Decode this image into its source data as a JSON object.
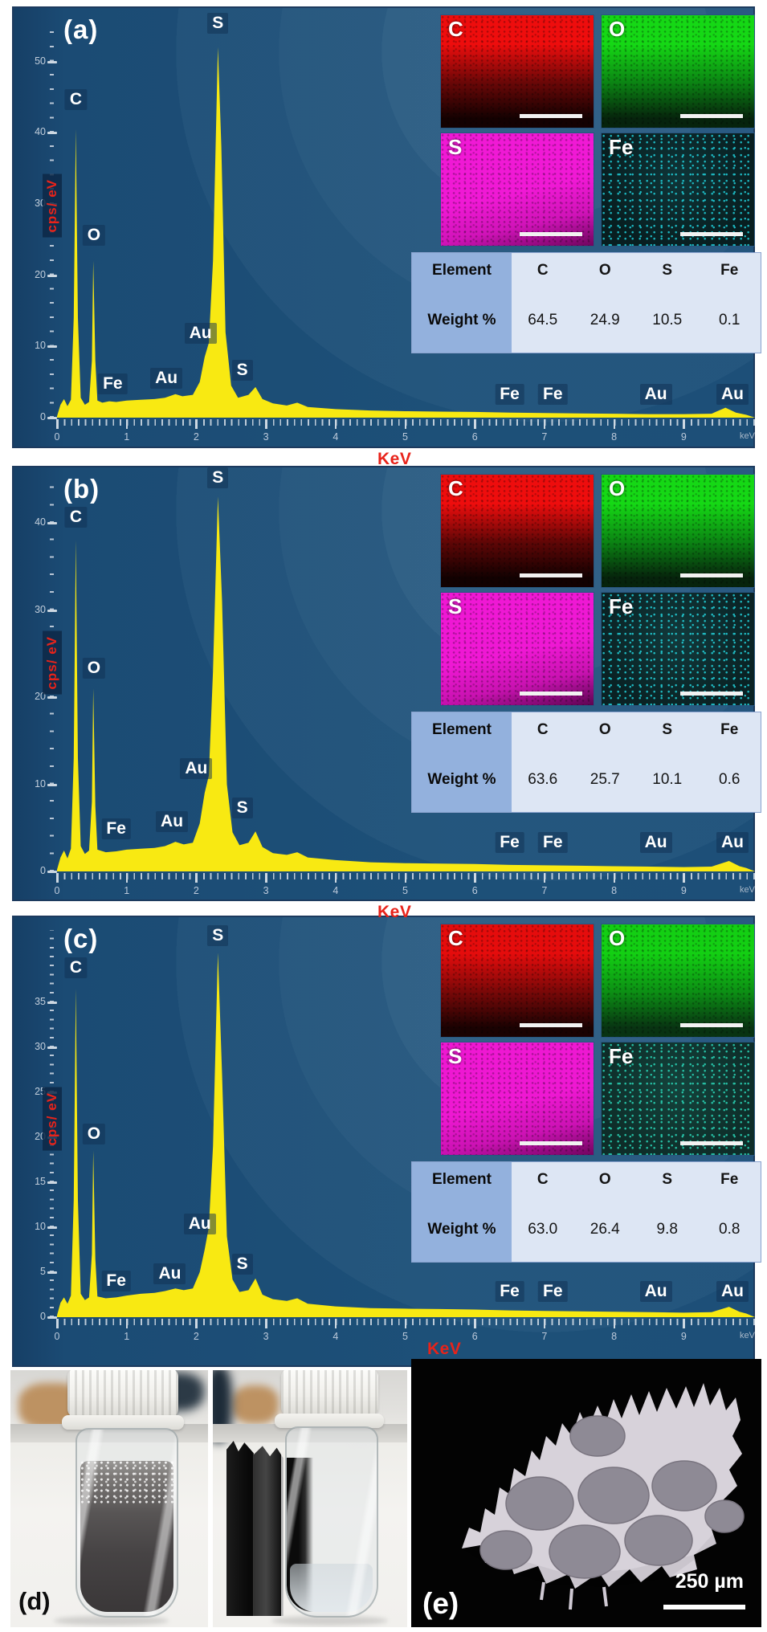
{
  "figure": {
    "panel_d_label": "(d)",
    "panel_e_label": "(e)",
    "sem_scale_bar_label": "250 µm"
  },
  "chart_data": [
    {
      "panel": "a",
      "type": "area",
      "title": "(a)",
      "xlabel": "KeV",
      "ylabel": "cps/ eV",
      "x_unit": "keV",
      "xlim": [
        0,
        10
      ],
      "ylim": [
        0,
        57.7
      ],
      "x_ticks": [
        0,
        1,
        2,
        3,
        4,
        5,
        6,
        7,
        8,
        9
      ],
      "y_ticks": [
        0,
        10,
        20,
        30,
        40,
        50
      ],
      "y_minor_interval": 2,
      "grid": false,
      "legend": "none",
      "series": [
        {
          "name": "EDS spectrum",
          "points": [
            [
              0,
              0.2
            ],
            [
              0.05,
              1.8
            ],
            [
              0.1,
              2.6
            ],
            [
              0.15,
              1.6
            ],
            [
              0.2,
              2.5
            ],
            [
              0.24,
              14
            ],
            [
              0.27,
              40.5
            ],
            [
              0.3,
              14
            ],
            [
              0.34,
              2.8
            ],
            [
              0.4,
              1.8
            ],
            [
              0.46,
              2.2
            ],
            [
              0.5,
              8
            ],
            [
              0.52,
              22
            ],
            [
              0.55,
              8
            ],
            [
              0.58,
              2.4
            ],
            [
              0.65,
              2.1
            ],
            [
              0.75,
              2.3
            ],
            [
              0.85,
              2.2
            ],
            [
              1,
              2.4
            ],
            [
              1.2,
              2.5
            ],
            [
              1.4,
              2.6
            ],
            [
              1.55,
              2.8
            ],
            [
              1.7,
              3.3
            ],
            [
              1.8,
              3
            ],
            [
              1.95,
              3.2
            ],
            [
              2.05,
              5
            ],
            [
              2.12,
              8.5
            ],
            [
              2.18,
              10.5
            ],
            [
              2.24,
              22
            ],
            [
              2.31,
              52
            ],
            [
              2.36,
              38
            ],
            [
              2.42,
              12
            ],
            [
              2.5,
              4.5
            ],
            [
              2.6,
              2.8
            ],
            [
              2.75,
              3.2
            ],
            [
              2.85,
              4.3
            ],
            [
              2.95,
              2.6
            ],
            [
              3.1,
              2
            ],
            [
              3.3,
              1.7
            ],
            [
              3.45,
              2.1
            ],
            [
              3.6,
              1.5
            ],
            [
              4,
              1.2
            ],
            [
              4.5,
              1
            ],
            [
              5,
              0.9
            ],
            [
              5.5,
              0.85
            ],
            [
              6,
              0.8
            ],
            [
              6.5,
              0.7
            ],
            [
              7,
              0.65
            ],
            [
              7.5,
              0.6
            ],
            [
              8,
              0.55
            ],
            [
              8.5,
              0.5
            ],
            [
              9,
              0.5
            ],
            [
              9.4,
              0.55
            ],
            [
              9.6,
              1.4
            ],
            [
              9.75,
              0.7
            ],
            [
              9.9,
              0.4
            ]
          ]
        }
      ],
      "peak_labels": [
        {
          "text": "C",
          "keV": 0.27,
          "value": 44.6
        },
        {
          "text": "O",
          "keV": 0.53,
          "value": 25.6
        },
        {
          "text": "S",
          "keV": 2.31,
          "value": 55.4
        },
        {
          "text": "Au",
          "keV": 2.06,
          "value": 11.8
        },
        {
          "text": "Fe",
          "keV": 0.8,
          "value": 4.7
        },
        {
          "text": "Au",
          "keV": 1.57,
          "value": 5.5
        },
        {
          "text": "S",
          "keV": 2.66,
          "value": 6.7
        },
        {
          "text": "Fe",
          "keV": 6.5,
          "value": 3.3
        },
        {
          "text": "Fe",
          "keV": 7.12,
          "value": 3.3
        },
        {
          "text": "Au",
          "keV": 8.6,
          "value": 3.3
        },
        {
          "text": "Au",
          "keV": 9.7,
          "value": 3.3
        }
      ],
      "element_maps": [
        {
          "element": "C",
          "style": "grad",
          "colors": [
            "#ee0d0d",
            "#6a0707",
            "#140101"
          ]
        },
        {
          "element": "O",
          "style": "grad",
          "colors": [
            "#15d815",
            "#0b8413",
            "#06230c"
          ]
        },
        {
          "element": "S",
          "style": "grad-s",
          "colors": [
            "#f019d5",
            "#d013b8",
            "#6e055d"
          ]
        },
        {
          "element": "Fe",
          "style": "speck",
          "colors": [
            "#081e20",
            "#0f3538",
            "#22dde8"
          ]
        }
      ],
      "weight_table": {
        "header_label": "Element",
        "columns": [
          "C",
          "O",
          "S",
          "Fe"
        ],
        "row_label": "Weight %",
        "values": [
          "64.5",
          "24.9",
          "10.5",
          "0.1"
        ]
      }
    },
    {
      "panel": "b",
      "type": "area",
      "title": "(b)",
      "xlabel": "KeV",
      "ylabel": "cps/ eV",
      "x_unit": "keV",
      "xlim": [
        0,
        10
      ],
      "ylim": [
        0,
        46.5
      ],
      "x_ticks": [
        0,
        1,
        2,
        3,
        4,
        5,
        6,
        7,
        8,
        9
      ],
      "y_ticks": [
        0,
        10,
        20,
        30,
        40
      ],
      "y_minor_interval": 2,
      "grid": false,
      "legend": "none",
      "series": [
        {
          "name": "EDS spectrum",
          "points": [
            [
              0,
              0.2
            ],
            [
              0.05,
              1.6
            ],
            [
              0.1,
              2.4
            ],
            [
              0.15,
              1.5
            ],
            [
              0.2,
              2.6
            ],
            [
              0.24,
              13
            ],
            [
              0.27,
              38
            ],
            [
              0.3,
              13
            ],
            [
              0.34,
              2.9
            ],
            [
              0.4,
              2
            ],
            [
              0.46,
              2.4
            ],
            [
              0.5,
              8
            ],
            [
              0.52,
              21
            ],
            [
              0.55,
              7.5
            ],
            [
              0.58,
              2.5
            ],
            [
              0.7,
              2.2
            ],
            [
              0.85,
              2.3
            ],
            [
              1,
              2.5
            ],
            [
              1.2,
              2.6
            ],
            [
              1.4,
              2.7
            ],
            [
              1.55,
              2.9
            ],
            [
              1.7,
              3.4
            ],
            [
              1.82,
              3.1
            ],
            [
              1.95,
              3.3
            ],
            [
              2.05,
              5.5
            ],
            [
              2.12,
              9
            ],
            [
              2.18,
              11
            ],
            [
              2.24,
              23
            ],
            [
              2.31,
              43
            ],
            [
              2.37,
              31
            ],
            [
              2.44,
              10
            ],
            [
              2.52,
              4.5
            ],
            [
              2.62,
              3
            ],
            [
              2.75,
              3.3
            ],
            [
              2.85,
              4.6
            ],
            [
              2.95,
              2.8
            ],
            [
              3.1,
              2.1
            ],
            [
              3.3,
              1.9
            ],
            [
              3.45,
              2.2
            ],
            [
              3.6,
              1.6
            ],
            [
              4,
              1.3
            ],
            [
              4.5,
              1.05
            ],
            [
              5,
              0.95
            ],
            [
              5.5,
              0.9
            ],
            [
              6,
              0.85
            ],
            [
              6.5,
              0.75
            ],
            [
              7,
              0.7
            ],
            [
              7.5,
              0.65
            ],
            [
              8,
              0.6
            ],
            [
              8.5,
              0.55
            ],
            [
              9,
              0.5
            ],
            [
              9.4,
              0.55
            ],
            [
              9.65,
              1.2
            ],
            [
              9.8,
              0.6
            ],
            [
              9.9,
              0.4
            ]
          ]
        }
      ],
      "peak_labels": [
        {
          "text": "C",
          "keV": 0.27,
          "value": 40.6
        },
        {
          "text": "O",
          "keV": 0.53,
          "value": 23.3
        },
        {
          "text": "S",
          "keV": 2.31,
          "value": 45.2
        },
        {
          "text": "Au",
          "keV": 2.0,
          "value": 11.8
        },
        {
          "text": "Fe",
          "keV": 0.85,
          "value": 4.9
        },
        {
          "text": "Au",
          "keV": 1.65,
          "value": 5.7
        },
        {
          "text": "S",
          "keV": 2.66,
          "value": 7.3
        },
        {
          "text": "Fe",
          "keV": 6.5,
          "value": 3.3
        },
        {
          "text": "Fe",
          "keV": 7.12,
          "value": 3.3
        },
        {
          "text": "Au",
          "keV": 8.6,
          "value": 3.3
        },
        {
          "text": "Au",
          "keV": 9.7,
          "value": 3.3
        }
      ],
      "element_maps": [
        {
          "element": "C",
          "style": "grad",
          "colors": [
            "#ee0d0d",
            "#600606",
            "#120101"
          ]
        },
        {
          "element": "O",
          "style": "grad",
          "colors": [
            "#15d815",
            "#0b8413",
            "#06230c"
          ]
        },
        {
          "element": "S",
          "style": "grad-s",
          "colors": [
            "#ef18d4",
            "#c912b1",
            "#5c0450"
          ]
        },
        {
          "element": "Fe",
          "style": "speck",
          "colors": [
            "#0a2224",
            "#123a3c",
            "#25e0e9"
          ]
        }
      ],
      "weight_table": {
        "header_label": "Element",
        "columns": [
          "C",
          "O",
          "S",
          "Fe"
        ],
        "row_label": "Weight %",
        "values": [
          "63.6",
          "25.7",
          "10.1",
          "0.6"
        ]
      }
    },
    {
      "panel": "c",
      "type": "area",
      "title": "(c)",
      "xlabel": "KeV",
      "ylabel": "cps/ eV",
      "x_unit": "keV",
      "xlim": [
        0,
        10
      ],
      "ylim": [
        0,
        44.5
      ],
      "x_ticks": [
        0,
        1,
        2,
        3,
        4,
        5,
        6,
        7,
        8,
        9
      ],
      "y_ticks": [
        0,
        5,
        10,
        15,
        20,
        25,
        30,
        35
      ],
      "y_minor_interval": 1,
      "grid": false,
      "legend": "none",
      "series": [
        {
          "name": "EDS spectrum",
          "points": [
            [
              0,
              0.2
            ],
            [
              0.05,
              1.6
            ],
            [
              0.1,
              2.2
            ],
            [
              0.15,
              1.5
            ],
            [
              0.2,
              2.4
            ],
            [
              0.24,
              13
            ],
            [
              0.27,
              36.5
            ],
            [
              0.3,
              13
            ],
            [
              0.34,
              2.6
            ],
            [
              0.4,
              1.9
            ],
            [
              0.46,
              2.2
            ],
            [
              0.5,
              7
            ],
            [
              0.52,
              18.5
            ],
            [
              0.55,
              6.5
            ],
            [
              0.58,
              2.3
            ],
            [
              0.7,
              2.1
            ],
            [
              0.85,
              2.2
            ],
            [
              1,
              2.4
            ],
            [
              1.2,
              2.6
            ],
            [
              1.4,
              2.7
            ],
            [
              1.55,
              2.9
            ],
            [
              1.7,
              3.2
            ],
            [
              1.82,
              3
            ],
            [
              1.95,
              3.2
            ],
            [
              2.05,
              5
            ],
            [
              2.12,
              7.5
            ],
            [
              2.18,
              10
            ],
            [
              2.24,
              19
            ],
            [
              2.31,
              40.5
            ],
            [
              2.37,
              27
            ],
            [
              2.44,
              9
            ],
            [
              2.52,
              4.2
            ],
            [
              2.62,
              2.8
            ],
            [
              2.75,
              3
            ],
            [
              2.85,
              4.3
            ],
            [
              2.95,
              2.5
            ],
            [
              3.1,
              2
            ],
            [
              3.3,
              1.8
            ],
            [
              3.45,
              2.1
            ],
            [
              3.6,
              1.5
            ],
            [
              4,
              1.2
            ],
            [
              4.5,
              1
            ],
            [
              5,
              0.95
            ],
            [
              5.5,
              0.9
            ],
            [
              6,
              0.85
            ],
            [
              6.5,
              0.75
            ],
            [
              7,
              0.7
            ],
            [
              7.5,
              0.65
            ],
            [
              8,
              0.6
            ],
            [
              8.5,
              0.55
            ],
            [
              9,
              0.5
            ],
            [
              9.4,
              0.55
            ],
            [
              9.65,
              1.15
            ],
            [
              9.8,
              0.6
            ],
            [
              9.9,
              0.4
            ]
          ]
        }
      ],
      "peak_labels": [
        {
          "text": "C",
          "keV": 0.27,
          "value": 38.8
        },
        {
          "text": "O",
          "keV": 0.53,
          "value": 20.4
        },
        {
          "text": "S",
          "keV": 2.31,
          "value": 42.4
        },
        {
          "text": "Au",
          "keV": 2.05,
          "value": 10.4
        },
        {
          "text": "Fe",
          "keV": 0.85,
          "value": 4.0
        },
        {
          "text": "Au",
          "keV": 1.62,
          "value": 4.8
        },
        {
          "text": "S",
          "keV": 2.66,
          "value": 5.9
        },
        {
          "text": "Fe",
          "keV": 6.5,
          "value": 2.9
        },
        {
          "text": "Fe",
          "keV": 7.12,
          "value": 2.9
        },
        {
          "text": "Au",
          "keV": 8.6,
          "value": 2.9
        },
        {
          "text": "Au",
          "keV": 9.7,
          "value": 2.9
        }
      ],
      "element_maps": [
        {
          "element": "C",
          "style": "grad",
          "colors": [
            "#e50c0c",
            "#7a0808",
            "#1a0202"
          ]
        },
        {
          "element": "O",
          "style": "grad",
          "colors": [
            "#13cf13",
            "#0c9014",
            "#083312"
          ]
        },
        {
          "element": "S",
          "style": "grad-s",
          "colors": [
            "#ee18d2",
            "#cc12b4",
            "#70045e"
          ]
        },
        {
          "element": "Fe",
          "style": "speck",
          "colors": [
            "#0e2d29",
            "#14433c",
            "#2ce3c2"
          ]
        }
      ],
      "weight_table": {
        "header_label": "Element",
        "columns": [
          "C",
          "O",
          "S",
          "Fe"
        ],
        "row_label": "Weight %",
        "values": [
          "63.0",
          "26.4",
          "9.8",
          "0.8"
        ]
      }
    }
  ]
}
